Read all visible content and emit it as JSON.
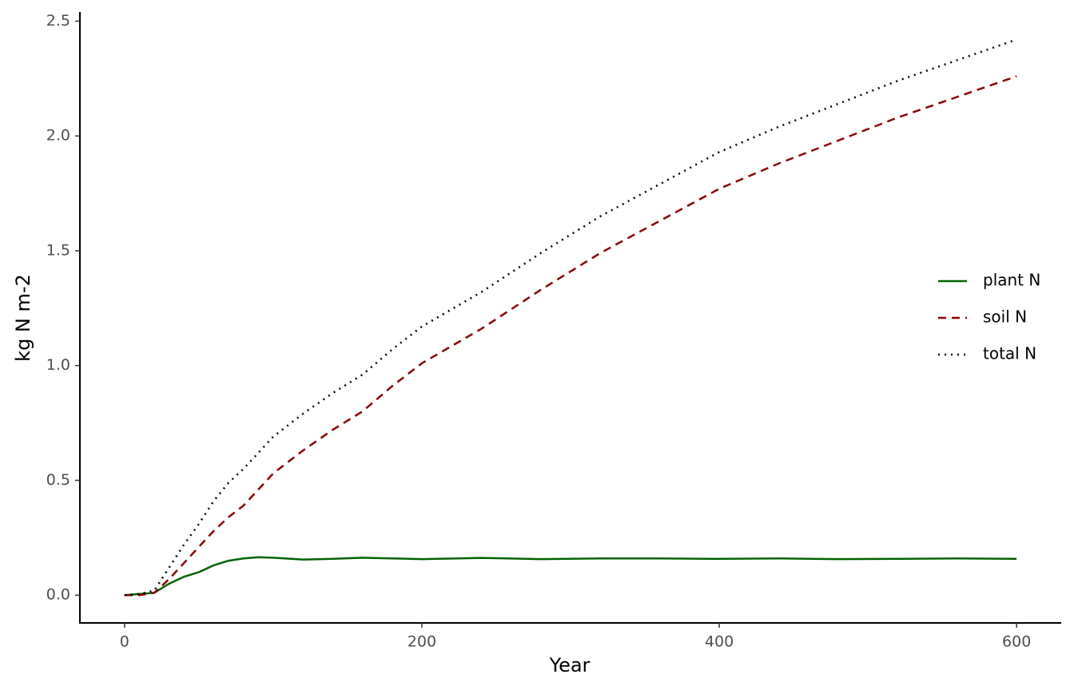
{
  "chart_data": {
    "type": "line",
    "x_label": "Year",
    "y_label": "kg N m-2",
    "x": [
      0,
      10,
      20,
      30,
      40,
      50,
      60,
      70,
      80,
      90,
      100,
      120,
      140,
      160,
      180,
      200,
      240,
      280,
      320,
      360,
      400,
      440,
      480,
      520,
      560,
      600
    ],
    "series": [
      {
        "name": "plant N",
        "color": "#006400",
        "linestyle": "solid",
        "values": [
          0,
          0.005,
          0.01,
          0.05,
          0.08,
          0.1,
          0.13,
          0.15,
          0.16,
          0.165,
          0.163,
          0.155,
          0.158,
          0.163,
          0.16,
          0.157,
          0.162,
          0.157,
          0.16,
          0.16,
          0.158,
          0.16,
          0.157,
          0.158,
          0.16,
          0.158
        ]
      },
      {
        "name": "soil N",
        "color": "#8b0000",
        "linestyle": "dashed",
        "values": [
          0,
          0,
          0.01,
          0.07,
          0.14,
          0.21,
          0.28,
          0.34,
          0.39,
          0.46,
          0.53,
          0.63,
          0.72,
          0.8,
          0.91,
          1.01,
          1.16,
          1.33,
          1.49,
          1.63,
          1.77,
          1.88,
          1.98,
          2.08,
          2.17,
          2.26
        ]
      },
      {
        "name": "total N",
        "color": "#000000",
        "linestyle": "dotted",
        "values": [
          0,
          0.005,
          0.02,
          0.12,
          0.22,
          0.31,
          0.41,
          0.49,
          0.55,
          0.62,
          0.69,
          0.79,
          0.88,
          0.96,
          1.07,
          1.17,
          1.32,
          1.49,
          1.65,
          1.79,
          1.93,
          2.04,
          2.14,
          2.24,
          2.33,
          2.42
        ]
      }
    ],
    "xlim": [
      -30,
      630
    ],
    "xticks": [
      0,
      200,
      400,
      600
    ],
    "ylim": [
      -0.121,
      2.54
    ],
    "yticks": [
      {
        "value": 0,
        "label": "0.0"
      },
      0.5,
      {
        "value": 1,
        "label": "1.0"
      },
      1.5,
      {
        "value": 2,
        "label": "2.0"
      },
      2.5
    ],
    "grid": false,
    "legend": "right"
  }
}
